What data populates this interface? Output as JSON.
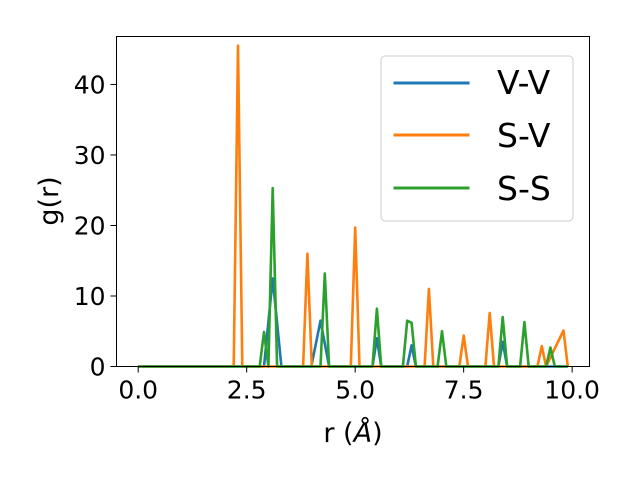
{
  "chart_data": {
    "type": "line",
    "title": "",
    "xlabel_base": "r (",
    "xlabel_italic": "Å",
    "xlabel_end": ")",
    "ylabel": "g(r)",
    "xlim": [
      -0.5,
      10.4
    ],
    "ylim": [
      0,
      46.8
    ],
    "xticks": [
      0.0,
      2.5,
      5.0,
      7.5,
      10.0
    ],
    "xtick_labels": [
      "0.0",
      "2.5",
      "5.0",
      "7.5",
      "10.0"
    ],
    "yticks": [
      0,
      10,
      20,
      30,
      40
    ],
    "ytick_labels": [
      "0",
      "10",
      "20",
      "30",
      "40"
    ],
    "grid": false,
    "legend_position": "top-right",
    "series": [
      {
        "name": "V-V",
        "color": "#1f77b4",
        "x": [
          0,
          2.9,
          3.1,
          3.3,
          3.99,
          4.2,
          4.4,
          5.4,
          5.5,
          5.6,
          6.2,
          6.3,
          6.4,
          8.3,
          8.4,
          8.5,
          9.9
        ],
        "y": [
          0,
          0,
          12.5,
          0,
          0,
          6.5,
          0,
          0,
          4,
          0,
          0,
          3,
          0,
          0,
          3.5,
          0,
          0
        ]
      },
      {
        "name": "S-V",
        "color": "#ff7f0e",
        "x": [
          0,
          2.2,
          2.3,
          2.4,
          3.8,
          3.9,
          4.0,
          4.9,
          5.0,
          5.1,
          6.6,
          6.7,
          6.8,
          7.4,
          7.5,
          7.6,
          8.0,
          8.1,
          8.2,
          9.2,
          9.3,
          9.4,
          9.8,
          9.9
        ],
        "y": [
          0,
          0,
          45.5,
          0,
          0,
          16,
          0,
          0,
          19.7,
          0,
          0,
          11,
          0,
          0,
          4.4,
          0,
          0,
          7.6,
          0,
          0,
          2.9,
          0,
          5.1,
          0
        ]
      },
      {
        "name": "S-S",
        "color": "#2ca02c",
        "x": [
          0,
          2.8,
          2.9,
          3.0,
          3.1,
          3.2,
          4.2,
          4.3,
          4.4,
          5.4,
          5.5,
          5.6,
          6.1,
          6.2,
          6.3,
          6.4,
          6.9,
          7.0,
          7.1,
          8.3,
          8.4,
          8.5,
          8.8,
          8.9,
          9.0,
          9.4,
          9.5,
          9.6,
          9.9
        ],
        "y": [
          0,
          0,
          4.9,
          0,
          25.3,
          0,
          0,
          13.2,
          0,
          0,
          8.2,
          0,
          0,
          6.5,
          6.2,
          0,
          0,
          5,
          0,
          0,
          7,
          0,
          0,
          6.3,
          0,
          0,
          2.7,
          0,
          0
        ]
      }
    ]
  }
}
